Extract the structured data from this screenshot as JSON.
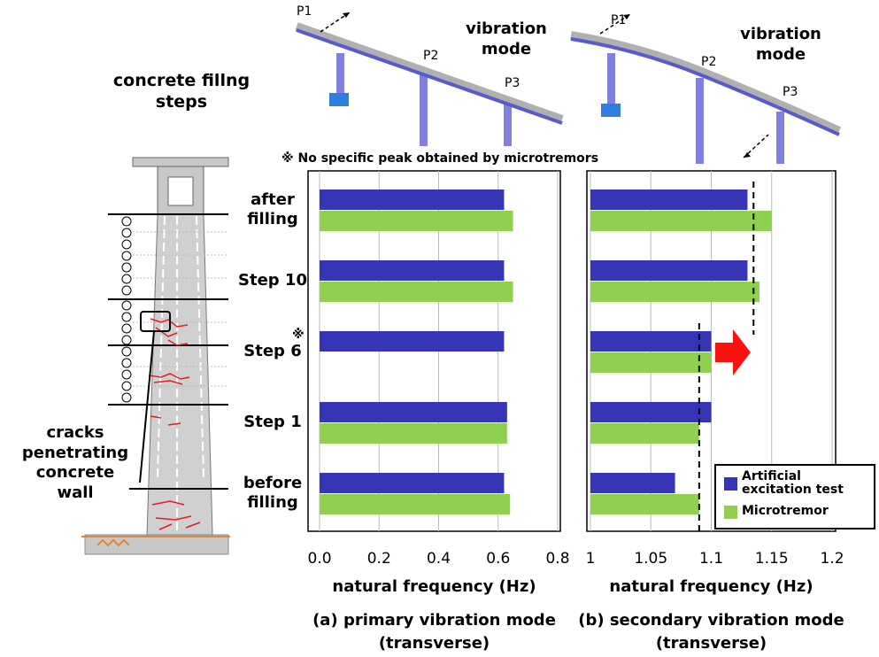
{
  "figure": {
    "left_title": "concrete fillng steps",
    "crack_label": "cracks penetrating concrete wall",
    "note": "※ No specific peak obtained by microtremors",
    "note_marker": "※",
    "mode_a": {
      "label": "vibration mode",
      "piers": [
        "P1",
        "P2",
        "P3"
      ]
    },
    "mode_b": {
      "label": "vibration mode",
      "piers": [
        "P1",
        "P2",
        "P3"
      ]
    }
  },
  "chart_data": [
    {
      "type": "bar",
      "orientation": "horizontal",
      "title": "(a) primary vibration mode",
      "subtitle": "(transverse)",
      "x_label": "natural frequency (Hz)",
      "categories": [
        "after filling",
        "Step 10",
        "Step 6",
        "Step 1",
        "before filling"
      ],
      "series": [
        {
          "color": "#3535b5",
          "values": [
            0.62,
            0.62,
            0.62,
            0.63,
            0.62
          ]
        },
        {
          "color": "#8fd14f",
          "values": [
            0.65,
            0.65,
            null,
            0.63,
            0.64
          ]
        }
      ],
      "xlim": [
        0,
        0.8
      ],
      "xticks": [
        {
          "value": 0,
          "label": "0.0"
        },
        0.2,
        0.4,
        0.6,
        0.8
      ],
      "grid": true
    },
    {
      "type": "bar",
      "orientation": "horizontal",
      "title": "(b) secondary vibration mode",
      "subtitle": "(transverse)",
      "x_label": "natural frequency (Hz)",
      "series": [
        {
          "name": "Artificial excitation test",
          "color": "#3535b5",
          "values": [
            1.13,
            1.13,
            1.1,
            1.1,
            1.07
          ]
        },
        {
          "name": "Microtremor",
          "color": "#8fd14f",
          "values": [
            1.15,
            1.14,
            1.1,
            1.09,
            1.09
          ]
        }
      ],
      "xlim": [
        1,
        1.2
      ],
      "xticks": [
        1,
        1.05,
        1.1,
        1.15,
        1.2
      ],
      "grid": true,
      "legend": "lower right",
      "reference_lines": [
        1.135,
        1.09
      ]
    }
  ]
}
